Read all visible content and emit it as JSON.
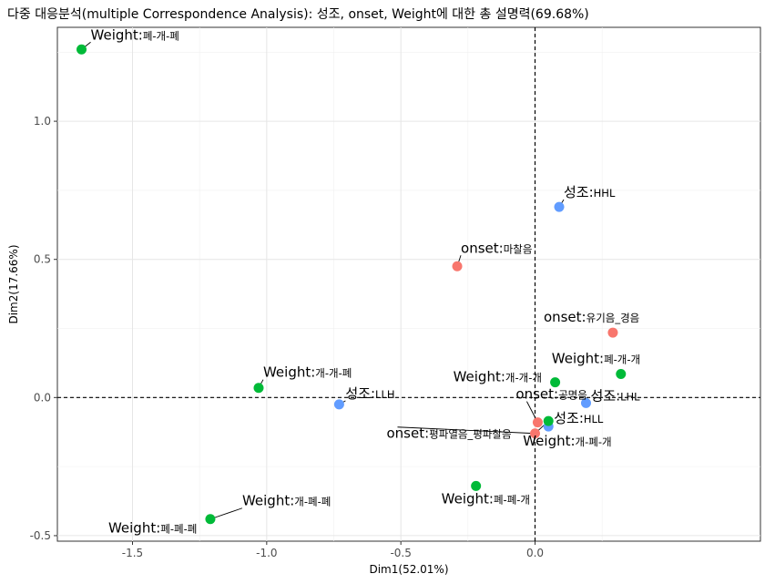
{
  "chart_data": {
    "type": "scatter",
    "title": "다중 대응분석(multiple Correspondence Analysis): 성조, onset, Weight에 대한 총 설명력(69.68%)",
    "xlabel": "Dim1(52.01%)",
    "ylabel": "Dim2(17.66%)",
    "xlim": [
      -1.78,
      0.84
    ],
    "ylim": [
      -0.52,
      1.34
    ],
    "x_ticks": [
      -1.5,
      -1.0,
      -0.5,
      0.0
    ],
    "x_tick_labels": [
      "-1.5",
      "-1.0",
      "-0.5",
      "0.0"
    ],
    "y_ticks": [
      -0.5,
      0.0,
      0.5,
      1.0
    ],
    "y_tick_labels": [
      "-0.5",
      "0.0",
      "0.5",
      "1.0"
    ],
    "grid": true,
    "reference_lines": {
      "x": 0.0,
      "y": 0.0
    },
    "groups": [
      {
        "key": "성조",
        "color": "#619CFF"
      },
      {
        "key": "onset",
        "color": "#F8766D"
      },
      {
        "key": "Weight",
        "color": "#00BA38"
      }
    ],
    "points": [
      {
        "var": "Weight",
        "cat": "폐-개-폐",
        "x": -1.69,
        "y": 1.26
      },
      {
        "var": "성조",
        "cat": "HHL",
        "x": 0.09,
        "y": 0.69
      },
      {
        "var": "onset",
        "cat": "마찰음",
        "x": -0.29,
        "y": 0.475
      },
      {
        "var": "onset",
        "cat": "유기음_경음",
        "x": 0.29,
        "y": 0.235
      },
      {
        "var": "Weight",
        "cat": "폐-개-개",
        "x": 0.32,
        "y": 0.085
      },
      {
        "var": "Weight",
        "cat": "개-개-개",
        "x": 0.075,
        "y": 0.055
      },
      {
        "var": "Weight",
        "cat": "개-개-폐",
        "x": -1.03,
        "y": 0.035
      },
      {
        "var": "성조",
        "cat": "LLH",
        "x": -0.73,
        "y": -0.025
      },
      {
        "var": "성조",
        "cat": "LHL",
        "x": 0.19,
        "y": -0.02
      },
      {
        "var": "onset",
        "cat": "공명음",
        "x": 0.01,
        "y": -0.09
      },
      {
        "var": "성조",
        "cat": "HLL",
        "x": 0.05,
        "y": -0.105
      },
      {
        "var": "Weight",
        "cat": "개-폐-개",
        "x": 0.05,
        "y": -0.085
      },
      {
        "var": "onset",
        "cat": "평파열음_평파찰음",
        "x": 0.0,
        "y": -0.13
      },
      {
        "var": "Weight",
        "cat": "폐-폐-개",
        "x": -0.22,
        "y": -0.32
      },
      {
        "var": "Weight",
        "cat": "개-폐-폐",
        "x": -1.21,
        "y": -0.44
      },
      {
        "var": "Weight",
        "cat": "폐-폐-폐",
        "x": -1.21,
        "y": -0.44
      }
    ]
  }
}
